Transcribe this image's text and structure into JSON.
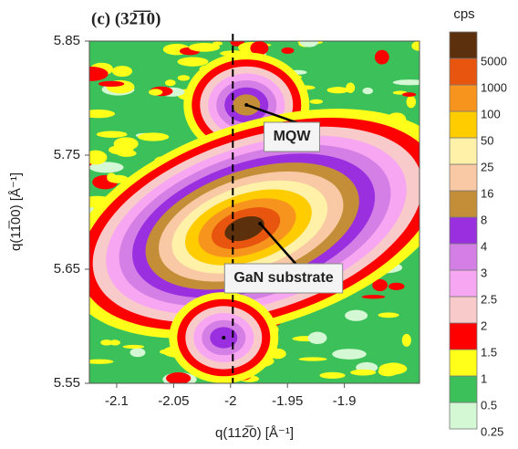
{
  "chart_data": {
    "type": "contour",
    "title": "(c) (32̅1̅0)",
    "xlabel": "q(112̅0) [Å⁻¹]",
    "ylabel": "q(11̅00) [Å⁻¹]",
    "xlim": [
      -2.124,
      -1.834
    ],
    "xticks": [
      -2.1,
      -2.05,
      -2,
      -1.95,
      -1.9
    ],
    "ylim": [
      5.55,
      5.85
    ],
    "yticks": [
      5.55,
      5.65,
      5.75,
      5.85
    ],
    "vline": -1.998,
    "colorbar_title": "cps",
    "levels": [
      {
        "value": 0.25,
        "color": "#d4f7d4"
      },
      {
        "value": 0.5,
        "color": "#3cc05a"
      },
      {
        "value": 1,
        "color": "#ffff1a"
      },
      {
        "value": 1.5,
        "color": "#ff0000"
      },
      {
        "value": 2,
        "color": "#f8caca"
      },
      {
        "value": 2.5,
        "color": "#f7a6f2"
      },
      {
        "value": 3,
        "color": "#d47fe6"
      },
      {
        "value": 4,
        "color": "#9a2fe0"
      },
      {
        "value": 8,
        "color": "#c48e38"
      },
      {
        "value": 16,
        "color": "#f8c9a4"
      },
      {
        "value": 25,
        "color": "#fff2a8"
      },
      {
        "value": 50,
        "color": "#ffcc00"
      },
      {
        "value": 100,
        "color": "#f7941d"
      },
      {
        "value": 1000,
        "color": "#e8550f"
      },
      {
        "value": 5000,
        "color": "#5c300c"
      }
    ],
    "peaks": [
      {
        "label": "MQW",
        "x": -1.986,
        "y": 5.794,
        "max": 8
      },
      {
        "label": "GaN substrate",
        "x": -1.974,
        "y": 5.69,
        "max": 5000
      },
      {
        "x": -2.006,
        "y": 5.59,
        "max": 4
      }
    ]
  }
}
